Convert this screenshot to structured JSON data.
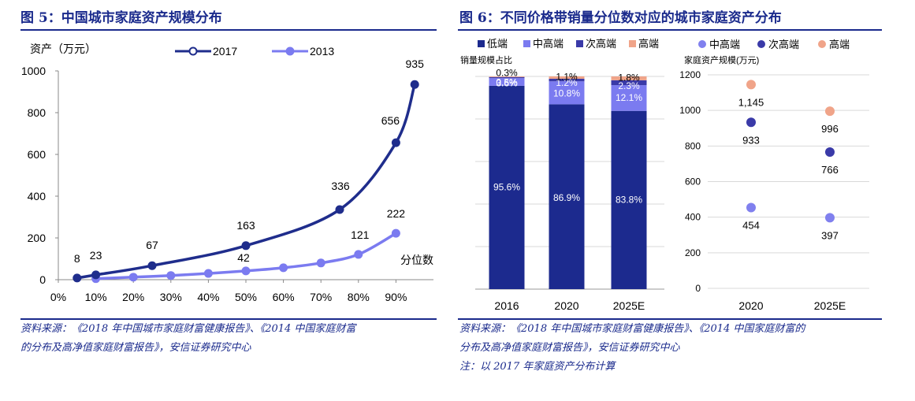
{
  "figure5": {
    "title": "图 5：中国城市家庭资产规模分布",
    "source_line1": "资料来源：《2018 年中国城市家庭财富健康报告》、《2014 中国家庭财富",
    "source_line2": "的分布及高净值家庭财富报告》，安信证券研究中心"
  },
  "figure6": {
    "title": "图 6：不同价格带销量分位数对应的城市家庭资产分布",
    "source_line1": "资料来源：《2018 年中国城市家庭财富健康报告》、《2014 中国家庭财富的",
    "source_line2": "分布及高净值家庭财富报告》，安信证券研究中心",
    "note": "注：以 2017 年家庭资产分布计算"
  },
  "chart_data": [
    {
      "type": "line",
      "ylabel": "资产（万元）",
      "xlabel": "分位数",
      "x_ticks": [
        "0%",
        "10%",
        "20%",
        "30%",
        "40%",
        "50%",
        "60%",
        "70%",
        "80%",
        "90%"
      ],
      "y_ticks": [
        "0",
        "200",
        "400",
        "600",
        "800",
        "1000"
      ],
      "ylim": [
        0,
        1000
      ],
      "xlim": [
        0,
        100
      ],
      "legend_position": "top",
      "series": [
        {
          "name": "2017",
          "color": "#1f2d8c",
          "points": [
            [
              5,
              8
            ],
            [
              10,
              23
            ],
            [
              25,
              67
            ],
            [
              50,
              163
            ],
            [
              75,
              336
            ],
            [
              90,
              656
            ],
            [
              95,
              935
            ]
          ],
          "labels": [
            "8",
            "23",
            "67",
            "163",
            "336",
            "656",
            "935"
          ]
        },
        {
          "name": "2013",
          "color": "#7b7bf0",
          "points": [
            [
              10,
              5
            ],
            [
              20,
              12
            ],
            [
              30,
              20
            ],
            [
              40,
              30
            ],
            [
              50,
              42
            ],
            [
              60,
              57
            ],
            [
              70,
              80
            ],
            [
              80,
              121
            ],
            [
              90,
              222
            ]
          ],
          "labels": [
            "",
            "",
            "",
            "",
            "42",
            "",
            "",
            "121",
            "222"
          ]
        }
      ]
    },
    {
      "type": "bar",
      "stacked": true,
      "ylabel": "销量规模占比",
      "categories": [
        "2016",
        "2020",
        "2025E"
      ],
      "legend_position": "top",
      "series": [
        {
          "name": "低端",
          "color": "#1c2a8e",
          "values": [
            95.6,
            86.9,
            83.8
          ],
          "labels": [
            "95.6%",
            "86.9%",
            "83.8%"
          ]
        },
        {
          "name": "中高端",
          "color": "#7b7bf0",
          "values": [
            3.6,
            10.8,
            12.1
          ],
          "labels": [
            "3.6%",
            "10.8%",
            "12.1%"
          ]
        },
        {
          "name": "次高端",
          "color": "#3a3aa8",
          "values": [
            0.5,
            1.2,
            2.3
          ],
          "labels": [
            "0.5%",
            "1.2%",
            "2.3%"
          ]
        },
        {
          "name": "高端",
          "color": "#f0a489",
          "values": [
            0.3,
            1.1,
            1.8
          ],
          "labels": [
            "0.3%",
            "1.1%",
            "1.8%"
          ]
        }
      ]
    },
    {
      "type": "scatter",
      "ylabel": "家庭资产规模(万元)",
      "categories": [
        "2020",
        "2025E"
      ],
      "y_ticks": [
        "0",
        "200",
        "400",
        "600",
        "800",
        "1000",
        "1200"
      ],
      "ylim": [
        0,
        1200
      ],
      "legend_position": "top",
      "series": [
        {
          "name": "中高端",
          "color": "#8080ee",
          "values": [
            454,
            397
          ],
          "labels": [
            "454",
            "397"
          ]
        },
        {
          "name": "次高端",
          "color": "#3a3aa8",
          "values": [
            933,
            766
          ],
          "labels": [
            "933",
            "766"
          ]
        },
        {
          "name": "高端",
          "color": "#f0a489",
          "values": [
            1145,
            996
          ],
          "labels": [
            "1,145",
            "996"
          ]
        }
      ]
    }
  ]
}
